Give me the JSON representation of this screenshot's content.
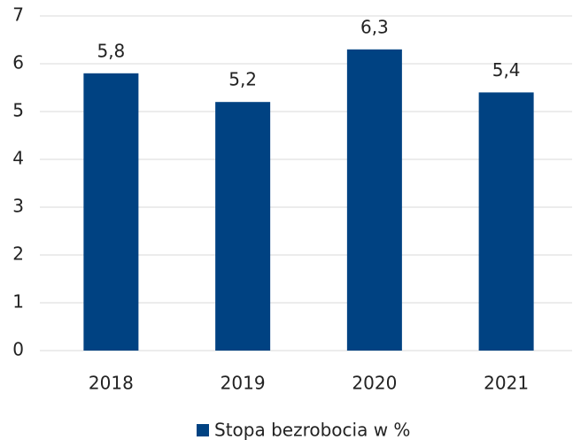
{
  "chart_data": {
    "type": "bar",
    "categories": [
      "2018",
      "2019",
      "2020",
      "2021"
    ],
    "series": [
      {
        "name": "Stopa bezrobocia w %",
        "color": "#004282",
        "values": [
          5.8,
          5.2,
          6.3,
          5.4
        ],
        "value_labels": [
          "5,8",
          "5,2",
          "6,3",
          "5,4"
        ]
      }
    ],
    "ylim": [
      0,
      7
    ],
    "yticks": [
      0,
      1,
      2,
      3,
      4,
      5,
      6,
      7
    ],
    "grid": true,
    "legend": "bottom"
  }
}
